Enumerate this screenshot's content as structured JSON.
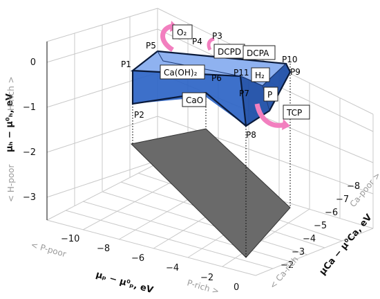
{
  "axes": {
    "h_axis": {
      "title": "μₕ − μ⁰ₕ, eV",
      "ticks": [
        "0",
        "−1",
        "−2",
        "−3"
      ],
      "rich_label": "H-rich >",
      "poor_label": "< H-poor"
    },
    "p_axis": {
      "title": "μₚ − μ⁰ₚ, eV",
      "ticks": [
        "−10",
        "−8",
        "−6",
        "−4",
        "−2",
        "0"
      ],
      "rich_label": "P-rich >",
      "poor_label": "< P-poor"
    },
    "ca_axis": {
      "title": "μCa − μ⁰Ca, eV",
      "ticks": [
        "−8",
        "−7",
        "−6",
        "−5",
        "−4",
        "−3",
        "−2"
      ],
      "rich_label": "< Ca-rich",
      "poor_label": "Ca-poor >"
    }
  },
  "points": [
    "P1",
    "P2",
    "P3",
    "P4",
    "P5",
    "P6",
    "P7",
    "P8",
    "P9",
    "P10",
    "P11"
  ],
  "phases": {
    "o2": "O₂",
    "dcpd": "DCPD",
    "dcpa": "DCPA",
    "caoh2": "Ca(OH)₂",
    "h2": "H₂",
    "cao": "CaO",
    "p": "P",
    "tcp": "TCP"
  },
  "colors": {
    "top_face": "#8fb2f0",
    "front_face": "#2d64c6",
    "side_face": "#1f4fa8",
    "shadow": "#6a6a6a",
    "arrow": "#f27fbf"
  }
}
